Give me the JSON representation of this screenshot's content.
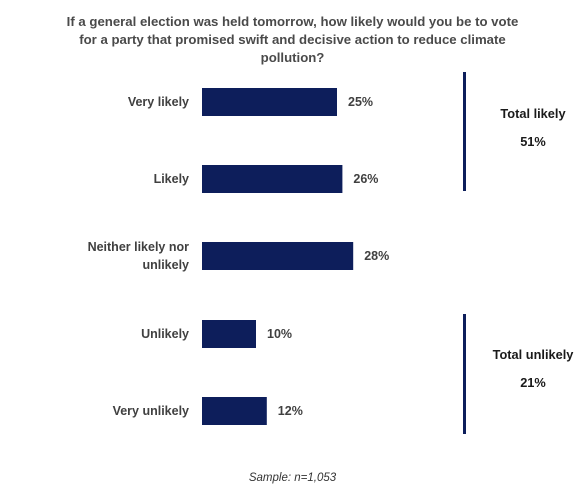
{
  "chart_data": {
    "type": "bar",
    "orientation": "horizontal",
    "title": "If a general election was held tomorrow, how likely would you be to vote for a party that promised swift and decisive action to reduce climate pollution?",
    "categories": [
      "Very likely",
      "Likely",
      "Neither likely nor unlikely",
      "Unlikely",
      "Very unlikely"
    ],
    "values": [
      25,
      26,
      28,
      10,
      12
    ],
    "value_labels": [
      "25%",
      "26%",
      "28%",
      "10%",
      "12%"
    ],
    "xlim": [
      0,
      50
    ],
    "grid": false,
    "bar_color": "#0d1e5b",
    "groups": [
      {
        "name": "Total likely",
        "total": "51%",
        "categories": [
          "Very likely",
          "Likely"
        ]
      },
      {
        "name": "Total unlikely",
        "total": "21%",
        "categories": [
          "Unlikely",
          "Very unlikely"
        ]
      }
    ]
  },
  "footnote": "Sample: n=1,053"
}
